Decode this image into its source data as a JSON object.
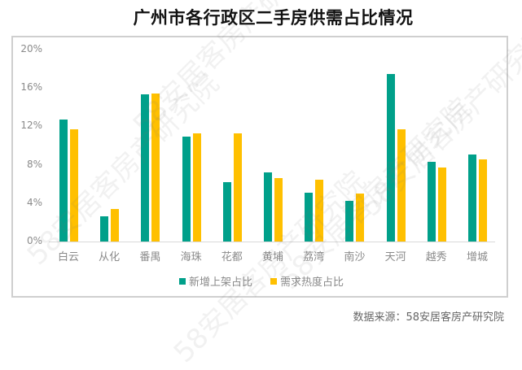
{
  "title": "广州市各行政区二手房供需占比情况",
  "source": "数据来源：58安居客房产研究院",
  "watermark": "58安居客房产研究院",
  "colors": {
    "supply": "#00A08A",
    "demand": "#FFC000"
  },
  "legend": [
    {
      "label": "新增上架占比",
      "color": "#00A08A"
    },
    {
      "label": "需求热度占比",
      "color": "#FFC000"
    }
  ],
  "y_ticks": [
    "20%",
    "16%",
    "12%",
    "8%",
    "4%",
    "0%"
  ],
  "chart_data": {
    "type": "bar",
    "title": "广州市各行政区二手房供需占比情况",
    "xlabel": "",
    "ylabel": "",
    "ylim": [
      0,
      20
    ],
    "y_unit": "%",
    "y_ticks": [
      0,
      4,
      8,
      12,
      16,
      20
    ],
    "grid": false,
    "legend_position": "bottom",
    "categories": [
      "白云",
      "从化",
      "番禺",
      "海珠",
      "花都",
      "黄埔",
      "荔湾",
      "南沙",
      "天河",
      "越秀",
      "增城"
    ],
    "series": [
      {
        "name": "新增上架占比",
        "color": "#00A08A",
        "values": [
          12.7,
          2.6,
          15.3,
          10.9,
          6.2,
          7.2,
          5.1,
          4.2,
          17.5,
          8.3,
          9.1
        ]
      },
      {
        "name": "需求热度占比",
        "color": "#FFC000",
        "values": [
          11.7,
          3.4,
          15.4,
          11.3,
          11.3,
          6.6,
          6.4,
          5.0,
          11.7,
          7.7,
          8.6
        ]
      }
    ],
    "source": "数据来源：58安居客房产研究院"
  }
}
